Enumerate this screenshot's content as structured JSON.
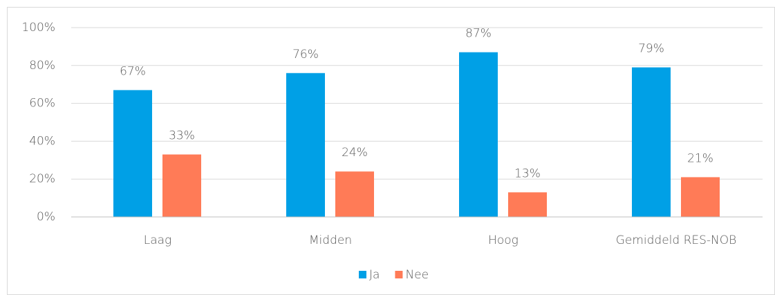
{
  "chart_data": {
    "type": "bar",
    "categories": [
      "Laag",
      "Midden",
      "Hoog",
      "Gemiddeld RES-NOB"
    ],
    "series": [
      {
        "name": "Ja",
        "color": "#00a0e6",
        "values": [
          67,
          76,
          87,
          79
        ],
        "value_labels": [
          "67%",
          "76%",
          "87%",
          "79%"
        ]
      },
      {
        "name": "Nee",
        "color": "#ff7b57",
        "values": [
          33,
          24,
          13,
          21
        ],
        "value_labels": [
          "33%",
          "24%",
          "13%",
          "21%"
        ]
      }
    ],
    "ylim": [
      0,
      100
    ],
    "yticks": [
      {
        "value": 0,
        "label": "0%"
      },
      {
        "value": 20,
        "label": "20%"
      },
      {
        "value": 40,
        "label": "40%"
      },
      {
        "value": 60,
        "label": "60%"
      },
      {
        "value": 80,
        "label": "80%"
      },
      {
        "value": 100,
        "label": "100%"
      }
    ],
    "grid": true,
    "legend": "bottom"
  }
}
